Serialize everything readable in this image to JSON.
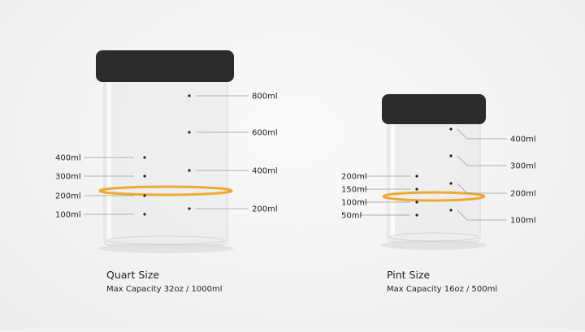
{
  "quart": {
    "title": "Quart Size",
    "subtitle": "Max Capacity 32oz / 1000ml",
    "left_marks": [
      "400ml",
      "300ml",
      "200ml",
      "100ml"
    ],
    "right_marks": [
      "800ml",
      "600ml",
      "400ml",
      "200ml"
    ]
  },
  "pint": {
    "title": "Pint Size",
    "subtitle": "Max Capacity 16oz / 500ml",
    "left_marks": [
      "200ml",
      "150ml",
      "100ml",
      "50ml"
    ],
    "right_marks": [
      "400ml",
      "300ml",
      "200ml",
      "100ml"
    ]
  },
  "colors": {
    "lid": "#2b2b2d",
    "ring": "#f0a830",
    "glass": "#e6e8e9"
  }
}
